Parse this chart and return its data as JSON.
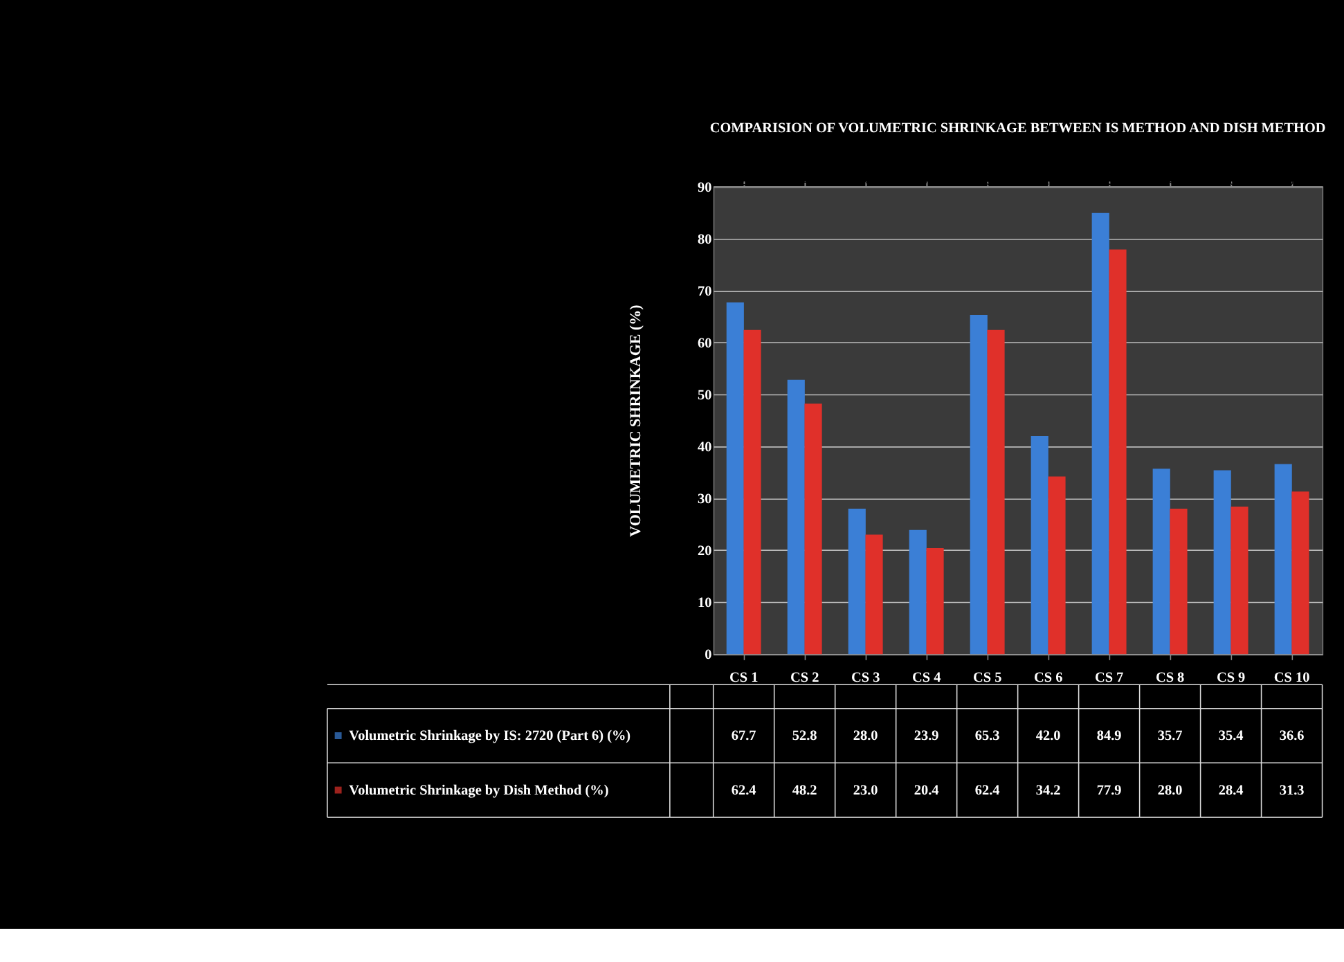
{
  "chart_data": {
    "type": "bar",
    "title": "COMPARISION OF VOLUMETRIC SHRINKAGE BETWEEN IS METHOD AND DISH METHOD",
    "ylabel": "VOLUMETRIC SHRINKAGE (%)",
    "categories": [
      "CS 1",
      "CS 2",
      "CS 3",
      "CS 4",
      "CS 5",
      "CS 6",
      "CS 7",
      "CS 8",
      "CS 9",
      "CS 10"
    ],
    "series": [
      {
        "name": "Volumetric Shrinkage by  IS: 2720 (Part 6)  (%)",
        "color": "#3b7fd6",
        "values": [
          67.7,
          52.8,
          28.0,
          23.9,
          65.3,
          42.0,
          84.9,
          35.7,
          35.4,
          36.6
        ],
        "value_labels": [
          "67.7",
          "52.8",
          "28.0",
          "23.9",
          "65.3",
          "42.0",
          "84.9",
          "35.7",
          "35.4",
          "36.6"
        ]
      },
      {
        "name": "Volumetric Shrinkage by Dish Method (%)",
        "color": "#e0302a",
        "values": [
          62.4,
          48.2,
          23.0,
          20.4,
          62.4,
          34.2,
          77.9,
          28.0,
          28.4,
          31.3
        ],
        "value_labels": [
          "62.4",
          "48.2",
          "23.0",
          "20.4",
          "62.4",
          "34.2",
          "77.9",
          "28.0",
          "28.4",
          "31.3"
        ]
      }
    ],
    "ylim": [
      0,
      90
    ],
    "yticks": [
      0,
      10,
      20,
      30,
      40,
      50,
      60,
      70,
      80,
      90
    ],
    "grid": "y",
    "legend": "bottom left"
  }
}
